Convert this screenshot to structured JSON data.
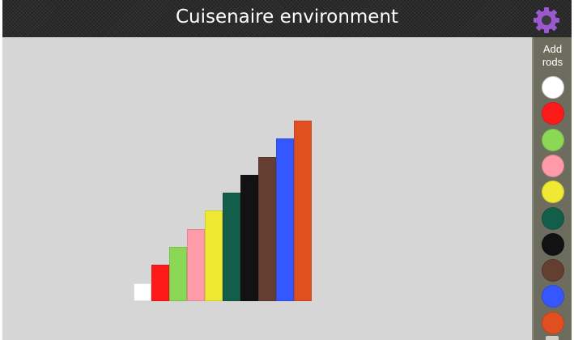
{
  "app": {
    "title": "Cuisenaire environment"
  },
  "settings": {
    "icon": "gear-icon",
    "color": "#9b59d0"
  },
  "sidebar": {
    "add_label": "Add\nrods"
  },
  "rods": [
    {
      "length": 1,
      "color": "#ffffff",
      "name": "white"
    },
    {
      "length": 2,
      "color": "#ff1a1a",
      "name": "red"
    },
    {
      "length": 3,
      "color": "#8ad855",
      "name": "light-green"
    },
    {
      "length": 4,
      "color": "#ff9aa8",
      "name": "pink"
    },
    {
      "length": 5,
      "color": "#f0e934",
      "name": "yellow"
    },
    {
      "length": 6,
      "color": "#135d4b",
      "name": "dark-green"
    },
    {
      "length": 7,
      "color": "#121212",
      "name": "black"
    },
    {
      "length": 8,
      "color": "#633e31",
      "name": "brown"
    },
    {
      "length": 9,
      "color": "#3557ff",
      "name": "blue"
    },
    {
      "length": 10,
      "color": "#e04f1f",
      "name": "orange"
    }
  ]
}
